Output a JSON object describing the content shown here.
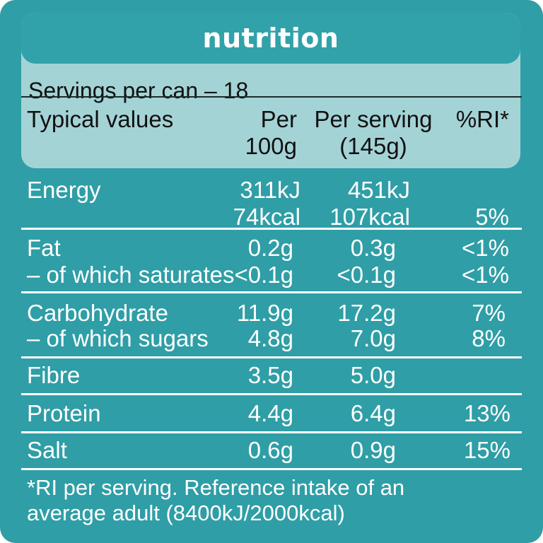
{
  "title": "nutrition",
  "servings": "Servings per can – 18",
  "headers": {
    "typical": "Typical values",
    "per100_line1": "Per",
    "per100_line2": "100g",
    "perserving_line1": "Per serving",
    "perserving_line2": "(145g)",
    "ri": "%RI*"
  },
  "rows": [
    {
      "name": "Energy",
      "sub": "",
      "per100": "311kJ",
      "per100_2": "74kcal",
      "serving": "451kJ",
      "serving_2": "107kcal",
      "ri": "",
      "ri_2": "5%"
    },
    {
      "name": "Fat",
      "sub": "– of which saturates",
      "per100": "0.2g",
      "per100_2": "<0.1g",
      "serving": "0.3g",
      "serving_2": "<0.1g",
      "ri": "<1%",
      "ri_2": "<1%"
    },
    {
      "name": "Carbohydrate",
      "sub": "– of which sugars",
      "per100": "11.9g",
      "per100_2": "4.8g",
      "serving": "17.2g",
      "serving_2": "7.0g",
      "ri": "7%",
      "ri_2": "8%"
    },
    {
      "name": "Fibre",
      "per100": "3.5g",
      "serving": "5.0g",
      "ri": ""
    },
    {
      "name": "Protein",
      "per100": "4.4g",
      "serving": "6.4g",
      "ri": "13%"
    },
    {
      "name": "Salt",
      "per100": "0.6g",
      "serving": "0.9g",
      "ri": "15%"
    }
  ],
  "footnote_line1": "*RI per serving. Reference intake of an",
  "footnote_line2": "average adult (8400kJ/2000kcal)",
  "colors": {
    "panel": "#2f9ea6",
    "card": "#a4d3d6",
    "title_bar": "#31a2a9"
  }
}
